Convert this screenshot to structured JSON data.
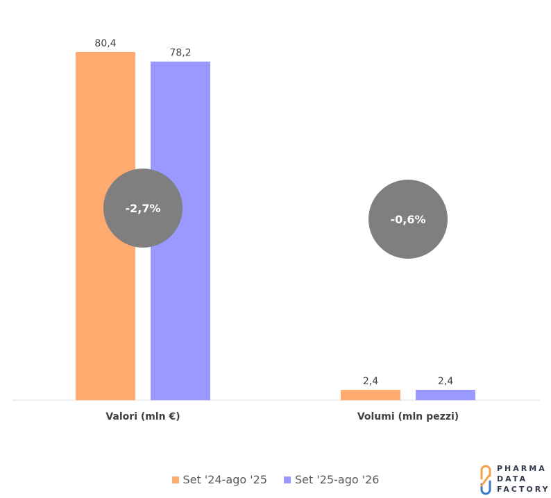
{
  "chart_data": {
    "type": "bar",
    "categories": [
      "Valori (mln €)",
      "Volumi (mln pezzi)"
    ],
    "series": [
      {
        "name": "Set '24-ago '25",
        "values": [
          80.4,
          2.4
        ],
        "labels": [
          "80,4",
          "2,4"
        ],
        "color": "#FFAB70"
      },
      {
        "name": "Set '25-ago '26",
        "values": [
          78.2,
          2.4
        ],
        "labels": [
          "78,2",
          "2,4"
        ],
        "color": "#9999FF"
      }
    ],
    "ylim": [
      0,
      82
    ],
    "grid": false,
    "legend_position": "bottom-center",
    "annotations": [
      {
        "category": "Valori (mln €)",
        "text": "-2,7%"
      },
      {
        "category": "Volumi (mln pezzi)",
        "text": "-0,6%"
      }
    ],
    "annotation_color": "#7F7F7F",
    "axis_color": "#D9D9D9"
  },
  "logo": {
    "lines": [
      "PHARMA",
      "DATA",
      "FACTORY"
    ],
    "colors": [
      "#F5A04B",
      "#3A78C9"
    ]
  }
}
